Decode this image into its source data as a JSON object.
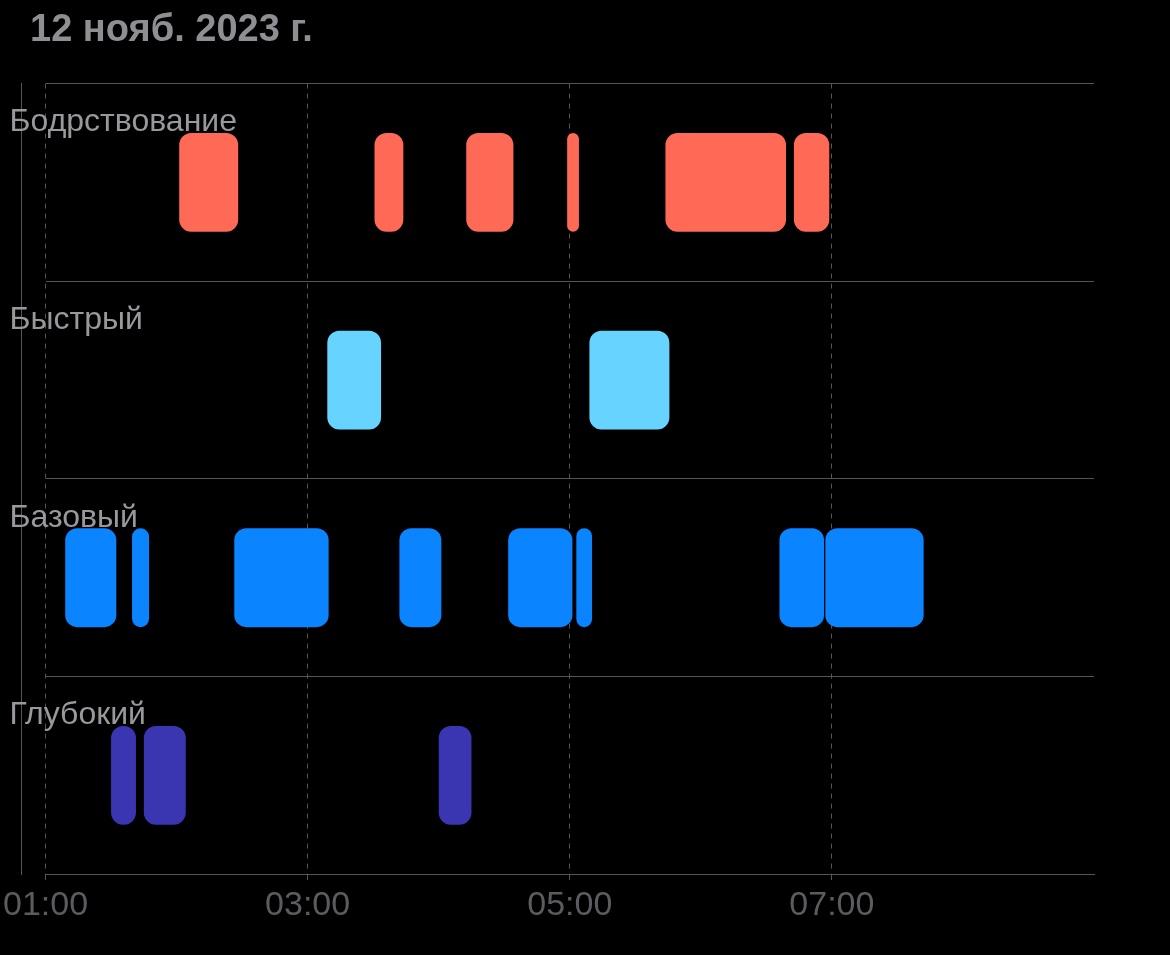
{
  "chart_data": {
    "type": "bar",
    "orientation": "horizontal",
    "title": "12 нояб. 2023 г.",
    "categories": [
      "Бодрствование",
      "Быстрый",
      "Базовый",
      "Глубокий"
    ],
    "series": [
      {
        "colors": [
          "#fe6a55",
          "#66d4ff",
          "#0a84ff",
          "#3a35b0"
        ],
        "base": [
          2.02,
          3.15,
          1.15,
          1.5
        ],
        "values": [
          0.45,
          0.41,
          0.39,
          0.19
        ]
      },
      {
        "colors": [
          "#fe6a55",
          "#66d4ff",
          "#0a84ff",
          "#3a35b0"
        ],
        "base": [
          3.51,
          5.15,
          1.66,
          1.75
        ],
        "values": [
          0.22,
          0.61,
          0.13,
          0.32
        ]
      },
      {
        "colors": [
          "#fe6a55",
          "#66d4ff",
          "#0a84ff",
          "#3a35b0"
        ],
        "base": [
          4.21,
          null,
          2.44,
          4.0
        ],
        "values": [
          0.36,
          null,
          0.72,
          0.25
        ]
      },
      {
        "colors": [
          "#fe6a55",
          "#66d4ff",
          "#0a84ff",
          "#3a35b0"
        ],
        "base": [
          4.98,
          null,
          3.7,
          null
        ],
        "values": [
          0.09,
          null,
          0.32,
          null
        ]
      },
      {
        "colors": [
          "#fe6a55",
          "#66d4ff",
          "#0a84ff",
          "#3a35b0"
        ],
        "base": [
          5.73,
          null,
          4.53,
          null
        ],
        "values": [
          0.92,
          null,
          0.49,
          null
        ]
      },
      {
        "colors": [
          "#fe6a55",
          "#66d4ff",
          "#0a84ff",
          "#3a35b0"
        ],
        "base": [
          6.71,
          null,
          5.05,
          null
        ],
        "values": [
          0.27,
          null,
          0.12,
          null
        ]
      },
      {
        "colors": [
          "#fe6a55",
          "#66d4ff",
          "#0a84ff",
          "#3a35b0"
        ],
        "base": [
          null,
          null,
          6.6,
          null
        ],
        "values": [
          null,
          null,
          0.34,
          null
        ]
      },
      {
        "colors": [
          "#fe6a55",
          "#66d4ff",
          "#0a84ff",
          "#3a35b0"
        ],
        "base": [
          null,
          null,
          6.95,
          null
        ],
        "values": [
          null,
          null,
          0.75,
          null
        ]
      }
    ],
    "xlim": [
      1,
      9
    ],
    "xticks": [
      {
        "value": 1,
        "label": "01:00"
      },
      {
        "value": 3,
        "label": "03:00"
      },
      {
        "value": 5,
        "label": "05:00"
      },
      {
        "value": 7,
        "label": "07:00"
      }
    ],
    "grid": true,
    "legend": false
  }
}
